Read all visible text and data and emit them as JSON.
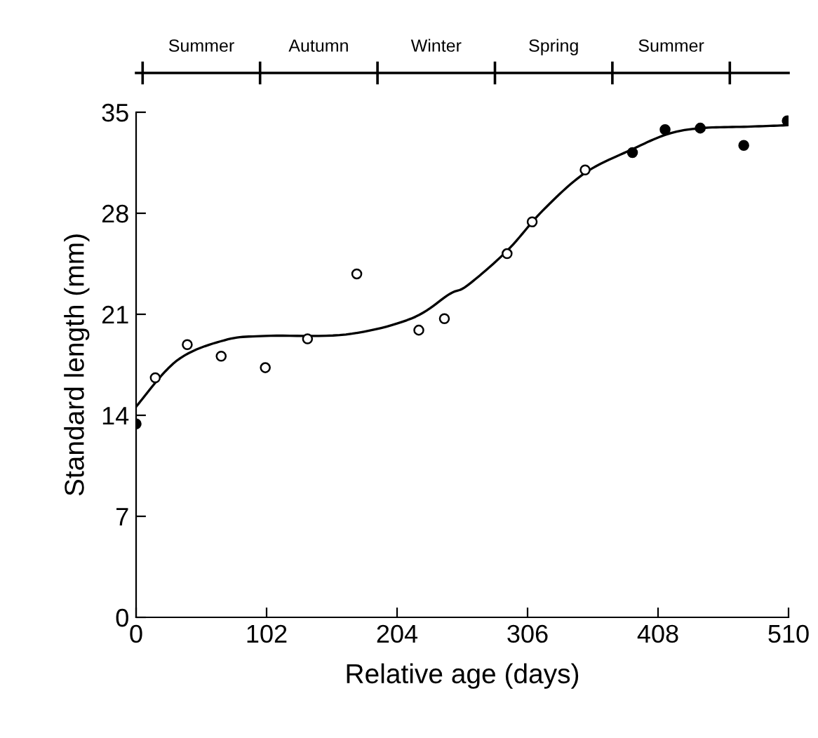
{
  "chart_data": {
    "type": "scatter",
    "xlabel": "Relative age (days)",
    "ylabel": "Standard length (mm)",
    "xlim": [
      0,
      510
    ],
    "ylim": [
      0,
      35
    ],
    "xticks": [
      0,
      102,
      204,
      306,
      408,
      510
    ],
    "yticks": [
      0,
      7,
      14,
      21,
      28,
      35
    ],
    "annotations": [
      "Summer",
      "Autumn",
      "Winter",
      "Spring",
      "Summer"
    ],
    "grid": false,
    "series": [
      {
        "marker": "circle",
        "color": "#ffffff",
        "x": [
          15,
          40,
          66.5,
          101,
          134,
          172.5,
          221,
          241,
          290,
          309.6,
          351
        ],
        "values": [
          16.6,
          18.9,
          18.1,
          17.3,
          19.3,
          23.8,
          19.9,
          20.7,
          25.2,
          27.4,
          31.0
        ]
      },
      {
        "marker": "circle",
        "color": "#000000",
        "x": [
          0,
          388,
          413.5,
          441,
          475,
          509
        ],
        "values": [
          13.4,
          32.2,
          33.8,
          33.9,
          32.7,
          34.4
        ]
      },
      {
        "type": "line",
        "marker": "none",
        "line_style": "solid",
        "color": "#000000",
        "x": [
          0,
          32,
          69,
          101,
          164,
          215,
          245,
          259,
          290,
          318,
          351,
          387,
          416,
          442,
          478,
          509
        ],
        "values": [
          14.6,
          17.8,
          19.2,
          19.5,
          19.6,
          20.7,
          22.4,
          23.0,
          25.4,
          28.2,
          30.8,
          32.4,
          33.5,
          33.9,
          34.0,
          34.1
        ]
      }
    ]
  }
}
